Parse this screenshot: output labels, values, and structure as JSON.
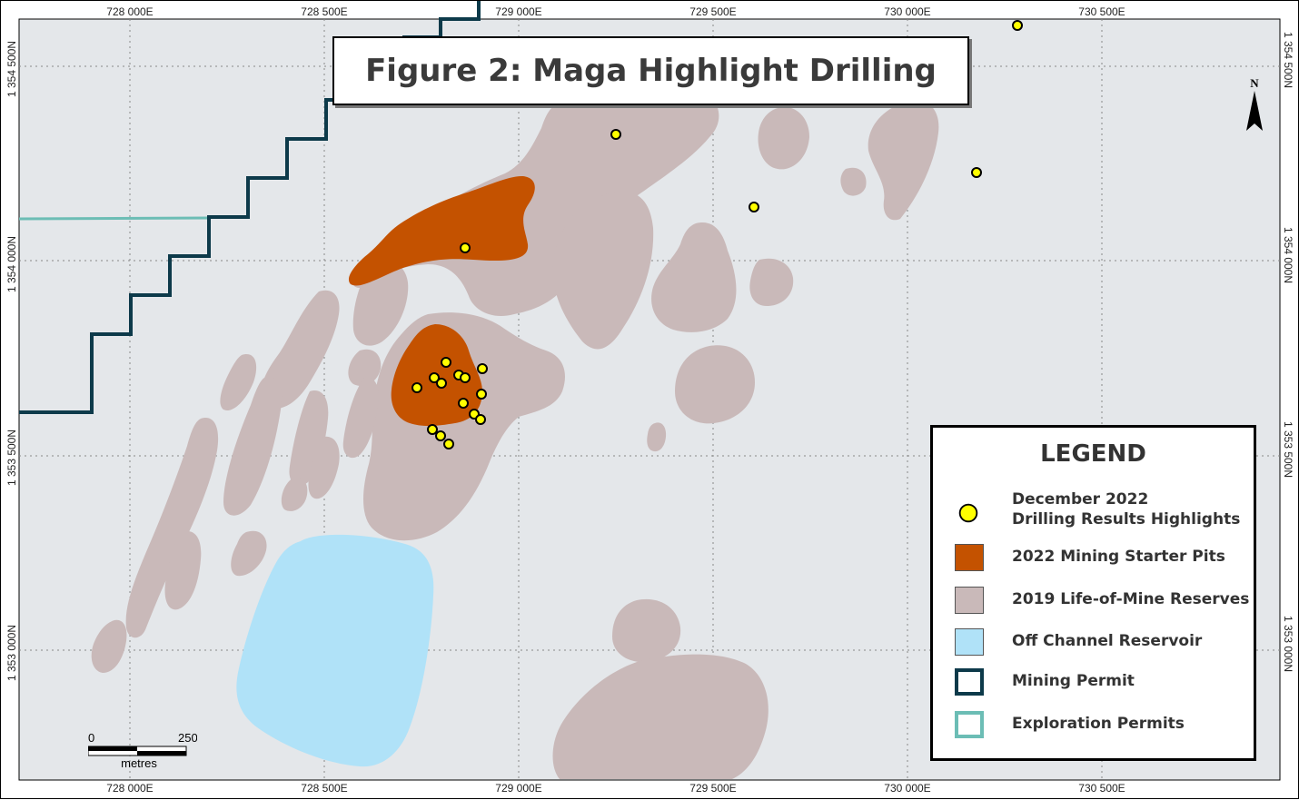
{
  "title": "Figure 2: Maga Highlight Drilling",
  "grid": {
    "eastings": [
      "728 000E",
      "728 500E",
      "729 000E",
      "729 500E",
      "730 000E",
      "730 500E"
    ],
    "northings": [
      "1 354 500N",
      "1 354 000N",
      "1 353 500N",
      "1 353 000N"
    ]
  },
  "legend": {
    "title": "LEGEND",
    "items": [
      {
        "label_line1": "December 2022",
        "label_line2": "Drilling Results Highlights",
        "symbol": "yellow-circle",
        "color": "#ffff00"
      },
      {
        "label_line1": "2022 Mining Starter Pits",
        "symbol": "fill",
        "color": "#c45200"
      },
      {
        "label_line1": "2019 Life-of-Mine Reserves",
        "symbol": "fill",
        "color": "#c9b9b9"
      },
      {
        "label_line1": "Off Channel Reservoir",
        "symbol": "fill",
        "color": "#b0e2f8"
      },
      {
        "label_line1": "Mining Permit",
        "symbol": "outline",
        "color": "#0d3a4a"
      },
      {
        "label_line1": "Exploration Permits",
        "symbol": "outline",
        "color": "#6cbdb5"
      }
    ]
  },
  "scale": {
    "start": "0",
    "end": "250",
    "unit": "metres"
  },
  "north_label": "N",
  "colors": {
    "background": "#e4e7ea",
    "reserves": "#c9b9b9",
    "starter_pits": "#c45200",
    "reservoir": "#b0e2f8",
    "mining_permit": "#0d3a4a",
    "exploration_permit": "#6cbdb5",
    "drill_hole": "#ffff00"
  }
}
